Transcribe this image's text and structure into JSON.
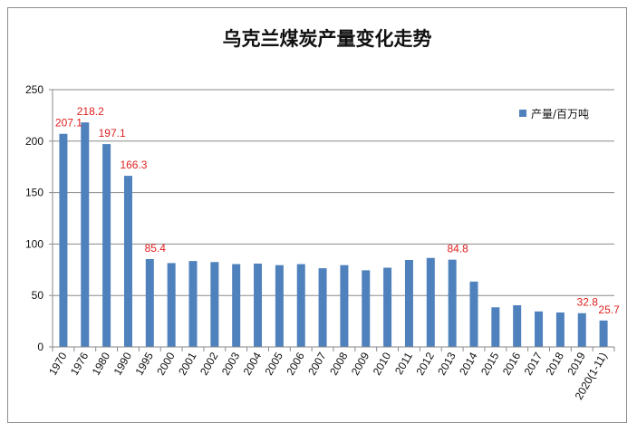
{
  "chart_data": {
    "type": "bar",
    "title": "乌克兰煤炭产量变化走势",
    "xlabel": "",
    "ylabel": "",
    "ylim": [
      0,
      250
    ],
    "yticks": [
      0,
      50,
      100,
      150,
      200,
      250
    ],
    "grid": true,
    "legend_position": "top-right",
    "categories": [
      "1970",
      "1976",
      "1980",
      "1990",
      "1995",
      "2000",
      "2001",
      "2002",
      "2003",
      "2004",
      "2005",
      "2006",
      "2007",
      "2008",
      "2009",
      "2010",
      "2011",
      "2012",
      "2013",
      "2014",
      "2015",
      "2016",
      "2017",
      "2018",
      "2019",
      "2020(1-11)"
    ],
    "series": [
      {
        "name": "产量/百万吨",
        "color": "#4f81bd",
        "values": [
          207.1,
          218.2,
          197.1,
          166.3,
          85.4,
          81.5,
          83.5,
          82.5,
          80.5,
          81.0,
          79.5,
          80.5,
          76.5,
          79.5,
          74.5,
          77.0,
          84.5,
          86.5,
          84.8,
          63.5,
          38.5,
          40.5,
          34.5,
          33.5,
          32.8,
          25.7
        ]
      }
    ],
    "data_labels": [
      {
        "category": "1970",
        "text": "207.1"
      },
      {
        "category": "1976",
        "text": "218.2"
      },
      {
        "category": "1980",
        "text": "197.1"
      },
      {
        "category": "1990",
        "text": "166.3"
      },
      {
        "category": "1995",
        "text": "85.4"
      },
      {
        "category": "2013",
        "text": "84.8"
      },
      {
        "category": "2019",
        "text": "32.8"
      },
      {
        "category": "2020(1-11)",
        "text": "25.7"
      }
    ],
    "label_color": "#e01f1f"
  }
}
